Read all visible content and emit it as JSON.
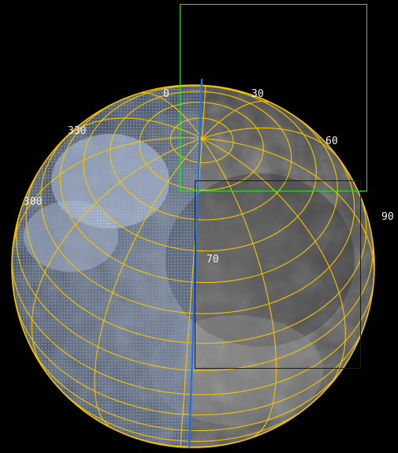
{
  "colors": {
    "background": "#000000",
    "grid": "#f5c400",
    "meridian": "#1e6fe8",
    "selection_green": "#2fe02f",
    "selection_dark": "#202020",
    "dot_overlay": "#5aa0ff"
  },
  "globe": {
    "labels": {
      "top_zero": "0",
      "top_30": "30",
      "left_330": "330",
      "left_300": "300",
      "right_60": "60",
      "right_90": "90",
      "center_70": "70"
    }
  }
}
